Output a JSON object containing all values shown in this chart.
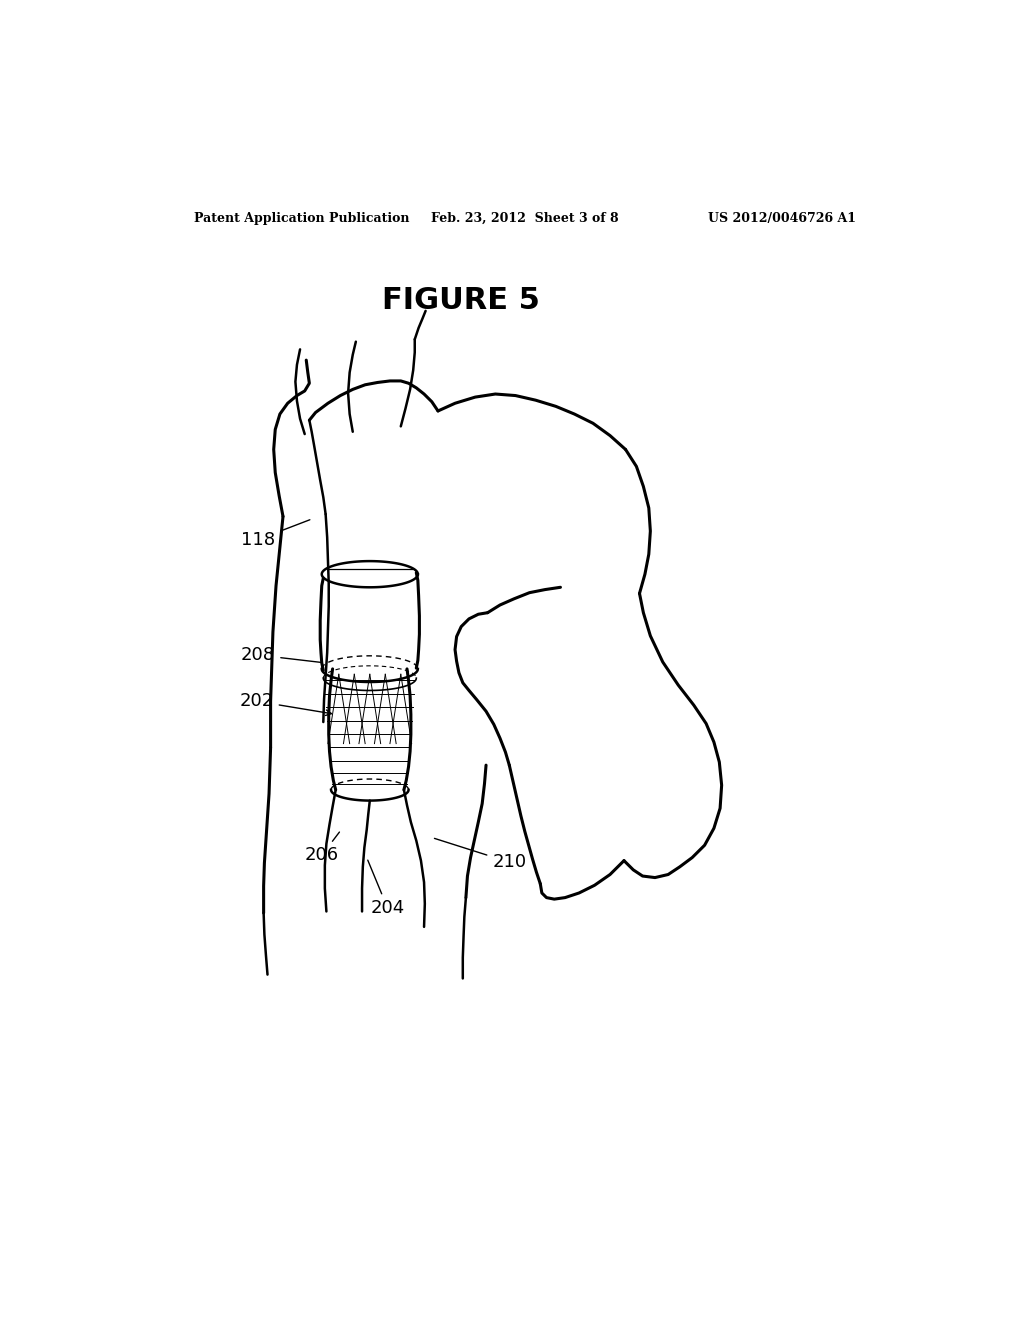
{
  "title": "FIGURE 5",
  "header_left": "Patent Application Publication",
  "header_center": "Feb. 23, 2012  Sheet 3 of 8",
  "header_right": "US 2012/0046726 A1",
  "background_color": "#ffffff",
  "line_color": "#000000",
  "label_fontsize": 13,
  "lw_main": 1.8,
  "lw_thick": 2.2
}
